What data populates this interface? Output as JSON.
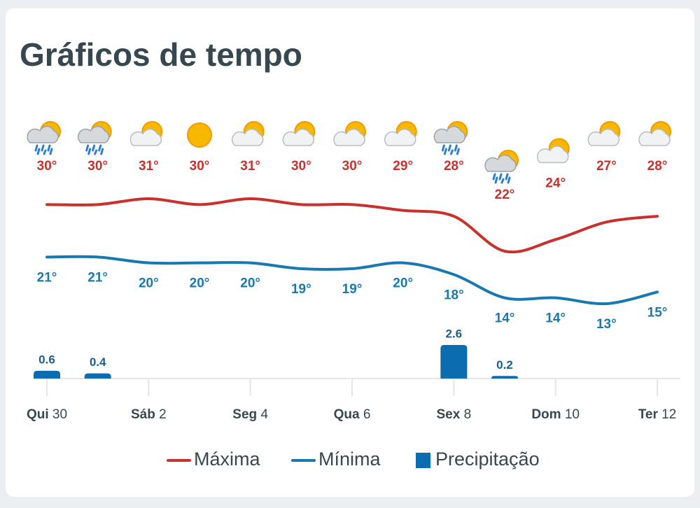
{
  "chart_data": {
    "type": "weather",
    "title": "Gráficos de tempo",
    "categories": [
      {
        "weekday": "Qui",
        "day": 30
      },
      null,
      {
        "weekday": "Sáb",
        "day": 2
      },
      null,
      {
        "weekday": "Seg",
        "day": 4
      },
      null,
      {
        "weekday": "Qua",
        "day": 6
      },
      null,
      {
        "weekday": "Sex",
        "day": 8
      },
      null,
      {
        "weekday": "Dom",
        "day": 10
      },
      null,
      {
        "weekday": "Ter",
        "day": 12
      }
    ],
    "icons": [
      "rain",
      "rain",
      "partly-cloudy",
      "sun",
      "partly-cloudy",
      "partly-cloudy",
      "partly-cloudy",
      "partly-cloudy",
      "rain",
      "rain",
      "partly-cloudy",
      "partly-cloudy",
      "partly-cloudy"
    ],
    "series": [
      {
        "name": "Máxima",
        "type": "line",
        "color": "#c8312c",
        "values": [
          30,
          30,
          31,
          30,
          31,
          30,
          30,
          29,
          28,
          22,
          24,
          27,
          28
        ],
        "value_labels": [
          "30°",
          "30°",
          "31°",
          "30°",
          "31°",
          "30°",
          "30°",
          "29°",
          "28°",
          "22°",
          "24°",
          "27°",
          "28°"
        ]
      },
      {
        "name": "Mínima",
        "type": "line",
        "color": "#1879b0",
        "values": [
          21,
          21,
          20,
          20,
          20,
          19,
          19,
          20,
          18,
          14,
          14,
          13,
          15
        ],
        "value_labels": [
          "21°",
          "21°",
          "20°",
          "20°",
          "20°",
          "19°",
          "19°",
          "20°",
          "18°",
          "14°",
          "14°",
          "13°",
          "15°"
        ]
      },
      {
        "name": "Precipitação",
        "type": "bar",
        "color": "#0b6db0",
        "values": [
          0.6,
          0.4,
          null,
          null,
          null,
          null,
          null,
          null,
          2.6,
          0.2,
          null,
          null,
          null
        ]
      }
    ]
  }
}
